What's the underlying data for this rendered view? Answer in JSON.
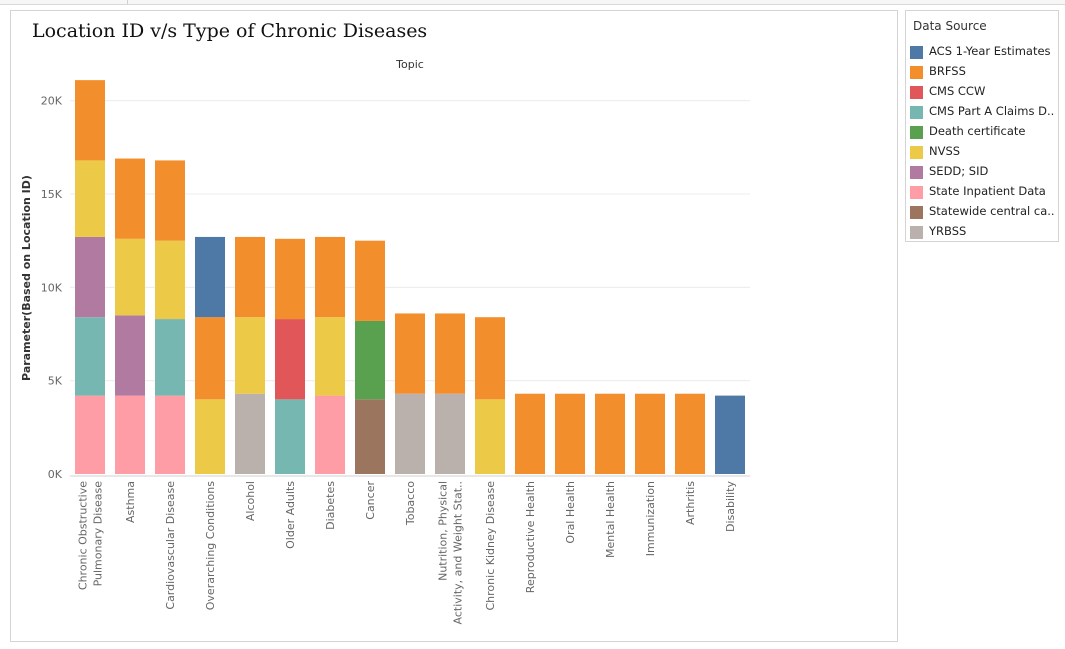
{
  "chart_title": "Location ID v/s Type of Chronic Diseases",
  "legend": {
    "title": "Data Source",
    "items": [
      {
        "label": "ACS 1-Year Estimates",
        "color": "#4e79a7"
      },
      {
        "label": "BRFSS",
        "color": "#f28e2b"
      },
      {
        "label": "CMS CCW",
        "color": "#e15759"
      },
      {
        "label": "CMS Part A Claims D..",
        "color": "#76b7b2"
      },
      {
        "label": "Death certificate",
        "color": "#59a14f"
      },
      {
        "label": "NVSS",
        "color": "#edc948"
      },
      {
        "label": "SEDD; SID",
        "color": "#b07aa1"
      },
      {
        "label": "State Inpatient Data",
        "color": "#ff9da7"
      },
      {
        "label": "Statewide central ca..",
        "color": "#9c755f"
      },
      {
        "label": "YRBSS",
        "color": "#bab0ac"
      }
    ]
  },
  "chart_data": {
    "type": "bar",
    "stacked": true,
    "title": "Location ID v/s Type of Chronic Diseases",
    "top_axis_label": "Topic",
    "ylabel": "Parameter(Based on Location ID)",
    "ylim": [
      0,
      21000
    ],
    "yticks": [
      0,
      5000,
      10000,
      15000,
      20000
    ],
    "ytick_labels": [
      "0K",
      "5K",
      "10K",
      "15K",
      "20K"
    ],
    "grid": true,
    "legend_position": "right",
    "categories": [
      "Chronic Obstructive Pulmonary Disease",
      "Asthma",
      "Cardiovascular Disease",
      "Overarching Conditions",
      "Alcohol",
      "Older Adults",
      "Diabetes",
      "Cancer",
      "Tobacco",
      "Nutrition, Physical Activity, and Weight Stat..",
      "Chronic Kidney Disease",
      "Reproductive Health",
      "Oral Health",
      "Mental Health",
      "Immunization",
      "Arthritis",
      "Disability"
    ],
    "category_labels": [
      [
        "Chronic Obstructive",
        "Pulmonary Disease"
      ],
      [
        "Asthma"
      ],
      [
        "Cardiovascular Disease"
      ],
      [
        "Overarching Conditions"
      ],
      [
        "Alcohol"
      ],
      [
        "Older Adults"
      ],
      [
        "Diabetes"
      ],
      [
        "Cancer"
      ],
      [
        "Tobacco"
      ],
      [
        "Nutrition, Physical",
        "Activity, and Weight Stat.."
      ],
      [
        "Chronic Kidney Disease"
      ],
      [
        "Reproductive Health"
      ],
      [
        "Oral Health"
      ],
      [
        "Mental Health"
      ],
      [
        "Immunization"
      ],
      [
        "Arthritis"
      ],
      [
        "Disability"
      ]
    ],
    "series": [
      {
        "name": "State Inpatient Data",
        "color": "#ff9da7",
        "values": [
          4200,
          4200,
          4200,
          0,
          0,
          0,
          4200,
          0,
          0,
          0,
          0,
          0,
          0,
          0,
          0,
          0,
          0
        ]
      },
      {
        "name": "Statewide central ca..",
        "color": "#9c755f",
        "values": [
          0,
          0,
          0,
          0,
          0,
          0,
          0,
          4000,
          0,
          0,
          0,
          0,
          0,
          0,
          0,
          0,
          0
        ]
      },
      {
        "name": "YRBSS",
        "color": "#bab0ac",
        "values": [
          0,
          0,
          0,
          0,
          4300,
          0,
          0,
          0,
          4300,
          4300,
          0,
          0,
          0,
          0,
          0,
          0,
          0
        ]
      },
      {
        "name": "CMS Part A Claims D..",
        "color": "#76b7b2",
        "values": [
          4200,
          0,
          4100,
          0,
          0,
          4000,
          0,
          0,
          0,
          0,
          0,
          0,
          0,
          0,
          0,
          0,
          0
        ]
      },
      {
        "name": "SEDD; SID",
        "color": "#b07aa1",
        "values": [
          4300,
          4300,
          0,
          0,
          0,
          0,
          0,
          0,
          0,
          0,
          0,
          0,
          0,
          0,
          0,
          0,
          0
        ]
      },
      {
        "name": "NVSS",
        "color": "#edc948",
        "values": [
          4100,
          4100,
          4200,
          4000,
          4100,
          0,
          4200,
          0,
          0,
          0,
          4000,
          0,
          0,
          0,
          0,
          0,
          0
        ]
      },
      {
        "name": "CMS CCW",
        "color": "#e15759",
        "values": [
          0,
          0,
          0,
          0,
          0,
          4300,
          0,
          0,
          0,
          0,
          0,
          0,
          0,
          0,
          0,
          0,
          0
        ]
      },
      {
        "name": "Death certificate",
        "color": "#59a14f",
        "values": [
          0,
          0,
          0,
          0,
          0,
          0,
          0,
          4200,
          0,
          0,
          0,
          0,
          0,
          0,
          0,
          0,
          0
        ]
      },
      {
        "name": "BRFSS",
        "color": "#f28e2b",
        "values": [
          4300,
          4300,
          4300,
          4400,
          4300,
          4300,
          4300,
          4300,
          4300,
          4300,
          4400,
          4300,
          4300,
          4300,
          4300,
          4300,
          0
        ]
      },
      {
        "name": "ACS 1-Year Estimates",
        "color": "#4e79a7",
        "values": [
          0,
          0,
          0,
          4300,
          0,
          0,
          0,
          0,
          0,
          0,
          0,
          0,
          0,
          0,
          0,
          0,
          4200
        ]
      }
    ]
  }
}
